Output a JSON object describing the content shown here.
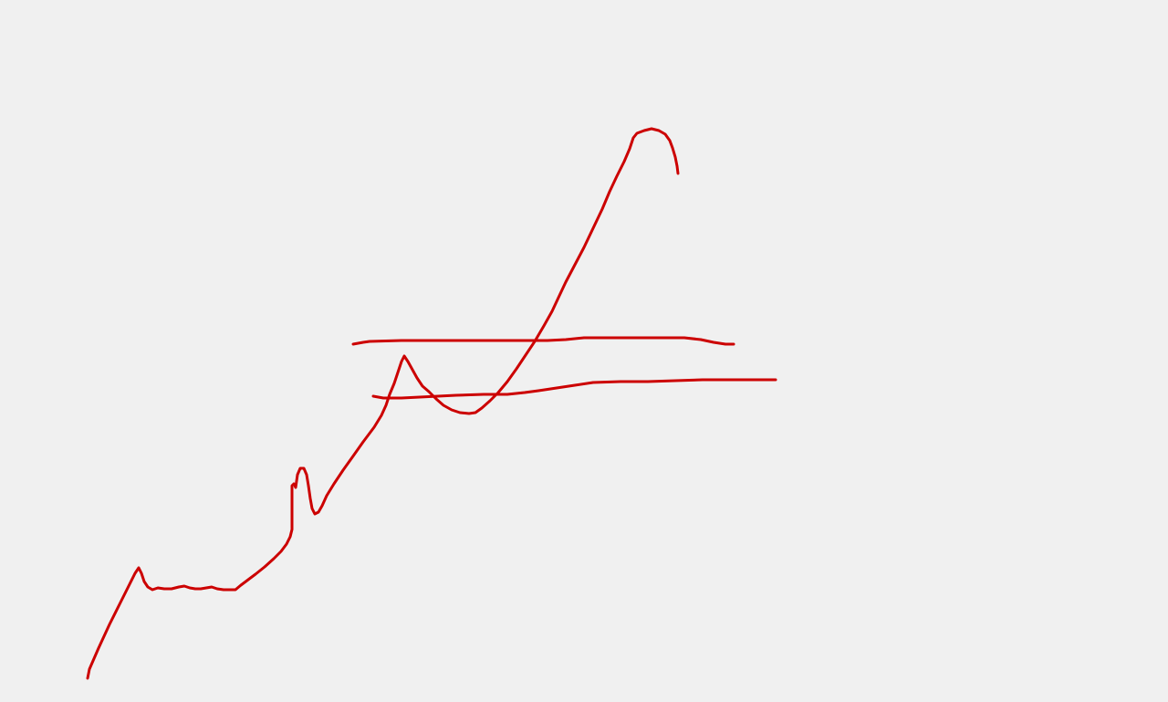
{
  "canvas": {
    "background": "#f0f0f0"
  },
  "drawing": {
    "stroke_color": "#cc0000",
    "strokes": [
      "price-line",
      "upper-horizontal-line",
      "lower-horizontal-line"
    ]
  }
}
